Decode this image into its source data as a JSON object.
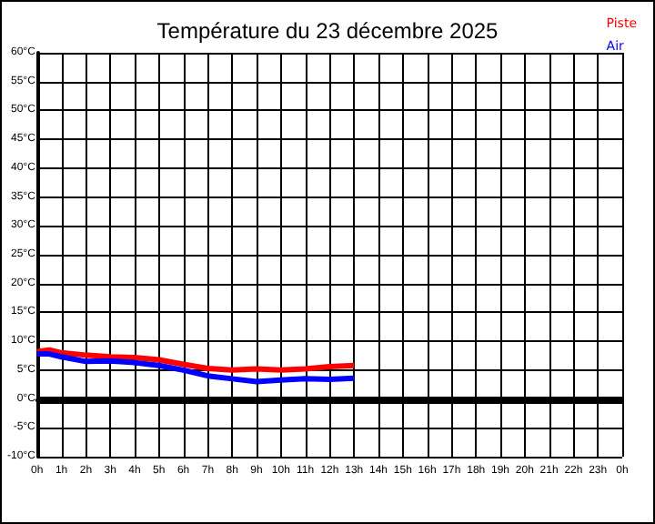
{
  "chart_data": {
    "type": "line",
    "title": "Température du 23 décembre 2025",
    "x": [
      "2025-12-23T00:00",
      "2025-12-23T00:30",
      "2025-12-23T01:00",
      "2025-12-23T02:00",
      "2025-12-23T03:00",
      "2025-12-23T04:00",
      "2025-12-23T05:00",
      "2025-12-23T06:00",
      "2025-12-23T07:00",
      "2025-12-23T08:00",
      "2025-12-23T09:00",
      "2025-12-23T10:00",
      "2025-12-23T11:00",
      "2025-12-23T12:00",
      "2025-12-23T13:00"
    ],
    "series": [
      {
        "name": "Piste",
        "color": "#ff0000",
        "values": [
          8.2,
          8.5,
          8,
          7.6,
          7.3,
          7.2,
          6.8,
          6,
          5.3,
          5,
          5.2,
          5,
          5.2,
          5.6,
          5.8
        ]
      },
      {
        "name": "Air",
        "color": "#0000ff",
        "values": [
          7.8,
          7.8,
          7.3,
          6.5,
          6.6,
          6.3,
          5.8,
          5,
          4,
          3.5,
          3,
          3.3,
          3.5,
          3.4,
          3.6
        ]
      }
    ],
    "xlim": [
      "2025-12-23T00:00",
      "2025-12-24T00:00"
    ],
    "xticks": [
      {
        "value": "2025-12-23T00:00",
        "label": "0h"
      },
      {
        "value": "2025-12-23T01:00",
        "label": "1h"
      },
      {
        "value": "2025-12-23T02:00",
        "label": "2h"
      },
      {
        "value": "2025-12-23T03:00",
        "label": "3h"
      },
      {
        "value": "2025-12-23T04:00",
        "label": "4h"
      },
      {
        "value": "2025-12-23T05:00",
        "label": "5h"
      },
      {
        "value": "2025-12-23T06:00",
        "label": "6h"
      },
      {
        "value": "2025-12-23T07:00",
        "label": "7h"
      },
      {
        "value": "2025-12-23T08:00",
        "label": "8h"
      },
      {
        "value": "2025-12-23T09:00",
        "label": "9h"
      },
      {
        "value": "2025-12-23T10:00",
        "label": "10h"
      },
      {
        "value": "2025-12-23T11:00",
        "label": "11h"
      },
      {
        "value": "2025-12-23T12:00",
        "label": "12h"
      },
      {
        "value": "2025-12-23T13:00",
        "label": "13h"
      },
      {
        "value": "2025-12-23T14:00",
        "label": "14h"
      },
      {
        "value": "2025-12-23T15:00",
        "label": "15h"
      },
      {
        "value": "2025-12-23T16:00",
        "label": "16h"
      },
      {
        "value": "2025-12-23T17:00",
        "label": "17h"
      },
      {
        "value": "2025-12-23T18:00",
        "label": "18h"
      },
      {
        "value": "2025-12-23T19:00",
        "label": "19h"
      },
      {
        "value": "2025-12-23T20:00",
        "label": "20h"
      },
      {
        "value": "2025-12-23T21:00",
        "label": "21h"
      },
      {
        "value": "2025-12-23T22:00",
        "label": "22h"
      },
      {
        "value": "2025-12-23T23:00",
        "label": "23h"
      },
      {
        "value": "2025-12-24T00:00",
        "label": "0h"
      }
    ],
    "ylim": [
      -10,
      60
    ],
    "yticks": [
      {
        "value": -10,
        "label": "-10°C"
      },
      {
        "value": -5,
        "label": "-5°C"
      },
      {
        "value": 0,
        "label": "0°C"
      },
      {
        "value": 5,
        "label": "5°C"
      },
      {
        "value": 10,
        "label": "10°C"
      },
      {
        "value": 15,
        "label": "15°C"
      },
      {
        "value": 20,
        "label": "20°C"
      },
      {
        "value": 25,
        "label": "25°C"
      },
      {
        "value": 30,
        "label": "30°C"
      },
      {
        "value": 35,
        "label": "35°C"
      },
      {
        "value": 40,
        "label": "40°C"
      },
      {
        "value": 45,
        "label": "45°C"
      },
      {
        "value": 50,
        "label": "50°C"
      },
      {
        "value": 55,
        "label": "55°C"
      },
      {
        "value": 60,
        "label": "60°C"
      }
    ],
    "ref_lines": [
      {
        "axis": "y",
        "value": 0,
        "color": "#000000"
      }
    ],
    "grid": true,
    "legend": "top right",
    "marker": "none",
    "line_style": "solid"
  }
}
